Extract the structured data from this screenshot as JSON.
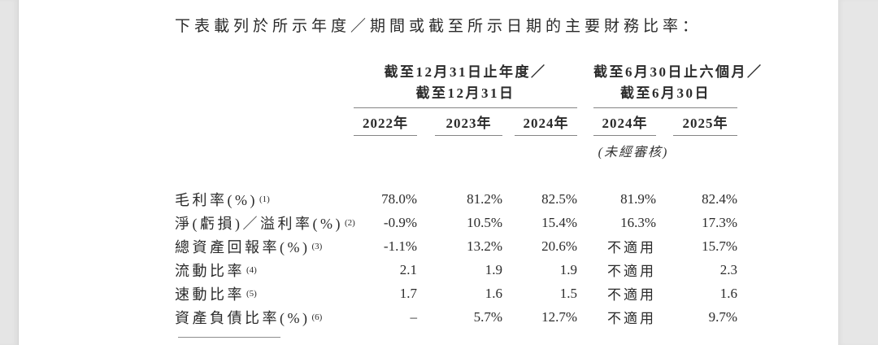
{
  "intro": "下表載列於所示年度／期間或截至所示日期的主要財務比率：",
  "table": {
    "groups": [
      {
        "line1": "截至12月31日止年度／",
        "line2": "截至12月31日"
      },
      {
        "line1": "截至6月30日止六個月／",
        "line2": "截至6月30日"
      }
    ],
    "years": [
      "2022年",
      "2023年",
      "2024年",
      "2024年",
      "2025年"
    ],
    "unaudited": "(未經審核)",
    "rows": [
      {
        "label": "毛利率(%)",
        "marker": "(1)",
        "values": [
          "78.0%",
          "81.2%",
          "82.5%",
          "81.9%",
          "82.4%"
        ]
      },
      {
        "label": "淨(虧損)／溢利率(%)",
        "marker": "(2)",
        "values": [
          "-0.9%",
          "10.5%",
          "15.4%",
          "16.3%",
          "17.3%"
        ]
      },
      {
        "label": "總資產回報率(%)",
        "marker": "(3)",
        "values": [
          "-1.1%",
          "13.2%",
          "20.6%",
          "不適用",
          "15.7%"
        ]
      },
      {
        "label": "流動比率",
        "marker": "(4)",
        "values": [
          "2.1",
          "1.9",
          "1.9",
          "不適用",
          "2.3"
        ]
      },
      {
        "label": "速動比率",
        "marker": "(5)",
        "values": [
          "1.7",
          "1.6",
          "1.5",
          "不適用",
          "1.6"
        ]
      },
      {
        "label": "資產負債比率(%)",
        "marker": "(6)",
        "values": [
          "–",
          "5.7%",
          "12.7%",
          "不適用",
          "9.7%"
        ]
      }
    ]
  },
  "colors": {
    "text": "#2b2b2b",
    "rule": "#858585",
    "page_bg": "#ffffff",
    "gutter_bg": "#e5e5e5"
  }
}
